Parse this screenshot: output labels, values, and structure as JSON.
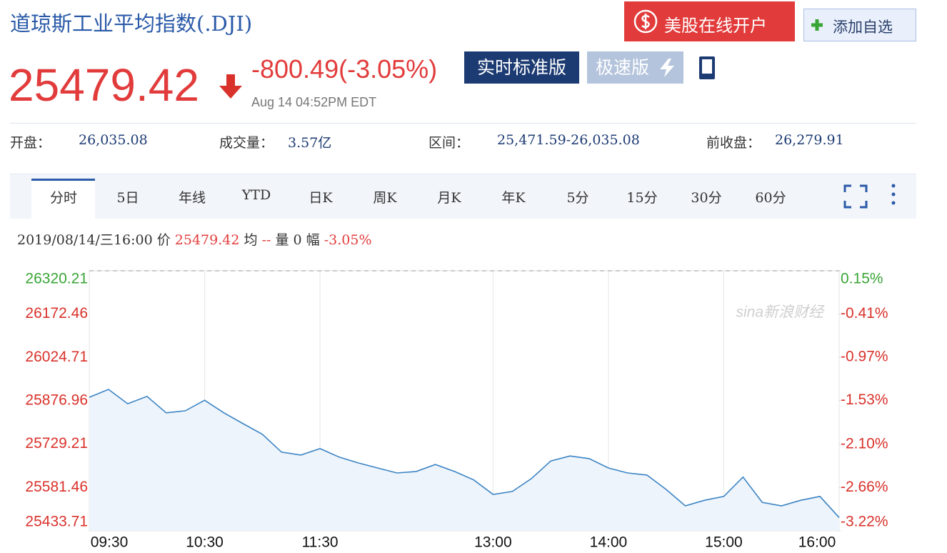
{
  "header": {
    "title": "道琼斯工业平均指数(.DJI)",
    "open_account": "美股在线开户",
    "add_watchlist": "添加自选",
    "price": "25479.42",
    "change": "-800.49(-3.05%)",
    "time": "Aug 14 04:52PM EDT",
    "version_standard": "实时标准版",
    "version_fast": "极速版"
  },
  "stats": [
    {
      "label": "开盘：",
      "value": "26,035.08"
    },
    {
      "label": "成交量：",
      "value": "3.57亿"
    },
    {
      "label": "区间：",
      "value": "25,471.59-26,035.08"
    },
    {
      "label": "前收盘：",
      "value": "26,279.91"
    }
  ],
  "tabs": [
    "分时",
    "5日",
    "年线",
    "YTD",
    "日K",
    "周K",
    "月K",
    "年K",
    "5分",
    "15分",
    "30分",
    "60分"
  ],
  "info": {
    "datetime": "2019/08/14/三16:00",
    "price_label": "价",
    "price": "25479.42",
    "avg_label": "均",
    "avg": "--",
    "volume_label": "量",
    "volume": "0",
    "range_label": "幅",
    "range": "-3.05%"
  },
  "chart_data": {
    "type": "line",
    "annotation": "sina新浪财经",
    "color": "#3b84c4",
    "x": [
      "09:30",
      "09:40",
      "09:50",
      "10:00",
      "10:10",
      "10:20",
      "10:30",
      "10:40",
      "10:50",
      "11:00",
      "11:10",
      "11:20",
      "11:30",
      "11:40",
      "11:50",
      "12:00",
      "12:10",
      "12:20",
      "12:30",
      "12:40",
      "12:50",
      "13:00",
      "13:10",
      "13:20",
      "13:30",
      "13:40",
      "13:50",
      "14:00",
      "14:10",
      "14:20",
      "14:30",
      "14:40",
      "14:50",
      "15:00",
      "15:10",
      "15:20",
      "15:30",
      "15:40",
      "15:50",
      "16:00"
    ],
    "values": [
      25889,
      25916,
      25867,
      25892,
      25836,
      25843,
      25879,
      25836,
      25799,
      25763,
      25702,
      25692,
      25714,
      25685,
      25665,
      25648,
      25631,
      25636,
      25660,
      25636,
      25607,
      25558,
      25568,
      25612,
      25672,
      25689,
      25680,
      25648,
      25631,
      25624,
      25575,
      25519,
      25538,
      25551,
      25617,
      25531,
      25519,
      25538,
      25551,
      25479
    ],
    "xlim": [
      "09:30",
      "16:00"
    ],
    "xticks": [
      "09:30",
      "10:30",
      "11:30",
      "13:00",
      "14:00",
      "15:00",
      "16:00"
    ],
    "ylim": [
      25433.71,
      26320.21
    ],
    "yticks": [
      26320.21,
      26172.46,
      26024.71,
      25876.96,
      25729.21,
      25581.46,
      25433.71
    ],
    "y2lim": [
      -3.22,
      0.15
    ],
    "y2ticks": [
      {
        "value": 0.15,
        "label": "0.15%"
      },
      {
        "value": -0.41,
        "label": "-0.41%"
      },
      {
        "value": -0.97,
        "label": "-0.97%"
      },
      {
        "value": -1.53,
        "label": "-1.53%"
      },
      {
        "value": -2.1,
        "label": "-2.10%"
      },
      {
        "value": -2.66,
        "label": "-2.66%"
      },
      {
        "value": -3.22,
        "label": "-3.22%"
      }
    ]
  }
}
